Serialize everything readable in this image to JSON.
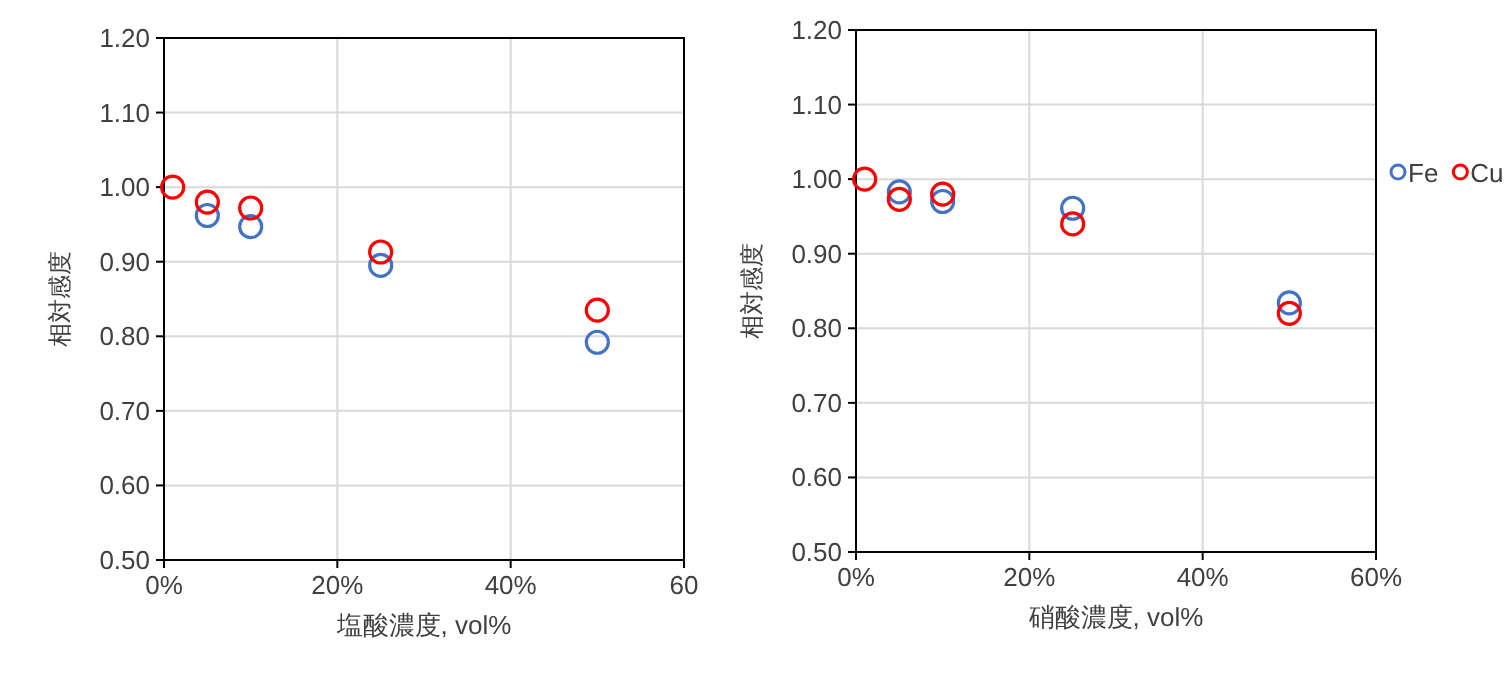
{
  "chart_data": [
    {
      "type": "scatter",
      "xlabel": "塩酸濃度, vol%",
      "ylabel": "相対感度",
      "marker": "circle",
      "grid": true,
      "legend": false,
      "xlim": [
        0,
        60
      ],
      "xticks": [
        {
          "value": 0,
          "label": "0%"
        },
        {
          "value": 20,
          "label": "20%"
        },
        {
          "value": 40,
          "label": "40%"
        },
        {
          "value": 60,
          "label": "60"
        }
      ],
      "ylim": [
        0.5,
        1.2
      ],
      "yticks": [
        {
          "value": 0.5,
          "label": "0.50"
        },
        {
          "value": 0.6,
          "label": "0.60"
        },
        {
          "value": 0.7,
          "label": "0.70"
        },
        {
          "value": 0.8,
          "label": "0.80"
        },
        {
          "value": 0.9,
          "label": "0.90"
        },
        {
          "value": 1.0,
          "label": "1.00"
        },
        {
          "value": 1.1,
          "label": "1.10"
        },
        {
          "value": 1.2,
          "label": "1.20"
        }
      ],
      "x": [
        1,
        5,
        10,
        25,
        50
      ],
      "series": [
        {
          "color": "#4472c4",
          "values": [
            null,
            0.962,
            0.947,
            0.895,
            0.792
          ]
        },
        {
          "color": "#ff0000",
          "values": [
            1.0,
            0.98,
            0.972,
            0.913,
            0.835
          ]
        }
      ]
    },
    {
      "type": "scatter",
      "xlabel": "硝酸濃度, vol%",
      "ylabel": "相対感度",
      "marker": "circle",
      "grid": true,
      "legend": "right",
      "xlim": [
        0,
        60
      ],
      "xticks": [
        {
          "value": 0,
          "label": "0%"
        },
        {
          "value": 20,
          "label": "20%"
        },
        {
          "value": 40,
          "label": "40%"
        },
        {
          "value": 60,
          "label": "60%"
        }
      ],
      "ylim": [
        0.5,
        1.2
      ],
      "yticks": [
        {
          "value": 0.5,
          "label": "0.50"
        },
        {
          "value": 0.6,
          "label": "0.60"
        },
        {
          "value": 0.7,
          "label": "0.70"
        },
        {
          "value": 0.8,
          "label": "0.80"
        },
        {
          "value": 0.9,
          "label": "0.90"
        },
        {
          "value": 1.0,
          "label": "1.00"
        },
        {
          "value": 1.1,
          "label": "1.10"
        },
        {
          "value": 1.2,
          "label": "1.20"
        }
      ],
      "x": [
        1,
        5,
        10,
        25,
        50
      ],
      "series": [
        {
          "name": "Fe",
          "color": "#4472c4",
          "values": [
            null,
            0.983,
            0.97,
            0.961,
            0.834
          ]
        },
        {
          "name": "Cu",
          "color": "#ff0000",
          "values": [
            1.0,
            0.973,
            0.98,
            0.94,
            0.82
          ]
        }
      ]
    }
  ]
}
